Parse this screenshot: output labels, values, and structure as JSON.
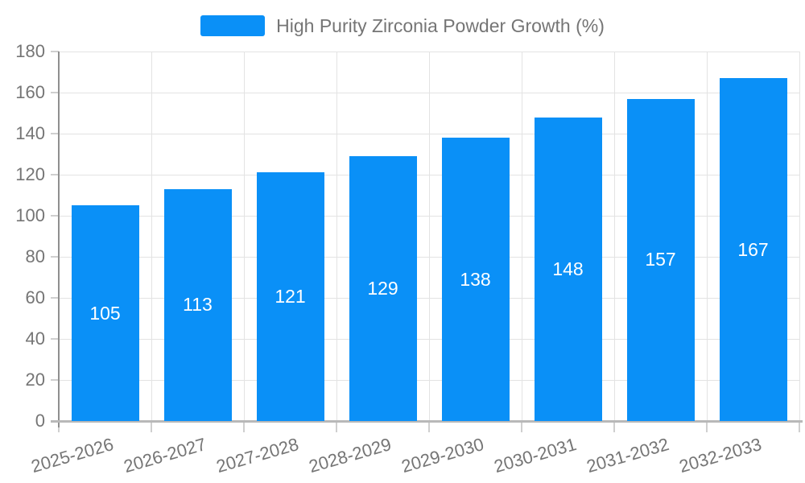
{
  "legend": {
    "label": "High Purity Zirconia Powder Growth (%)"
  },
  "chart_data": {
    "type": "bar",
    "title": "High Purity Zirconia Powder Growth (%)",
    "categories": [
      "2025-2026",
      "2026-2027",
      "2027-2028",
      "2028-2029",
      "2029-2030",
      "2030-2031",
      "2031-2032",
      "2032-2033"
    ],
    "values": [
      105,
      113,
      121,
      129,
      138,
      148,
      157,
      167
    ],
    "yticks": [
      0,
      20,
      40,
      60,
      80,
      100,
      120,
      140,
      160,
      180
    ],
    "ylim": [
      0,
      180
    ],
    "xlabel": "",
    "ylabel": "",
    "grid": true,
    "legend_position": "top",
    "bar_labels_inside": true
  },
  "colors": {
    "bar": "#0a90f7",
    "bar_label": "#ffffff",
    "text": "#757575",
    "grid": "#e3e3e3",
    "tick": "#cfcfcf",
    "axis_y": "#8f8f8f",
    "axis_x": "#b8b8b8",
    "background": "#ffffff"
  }
}
